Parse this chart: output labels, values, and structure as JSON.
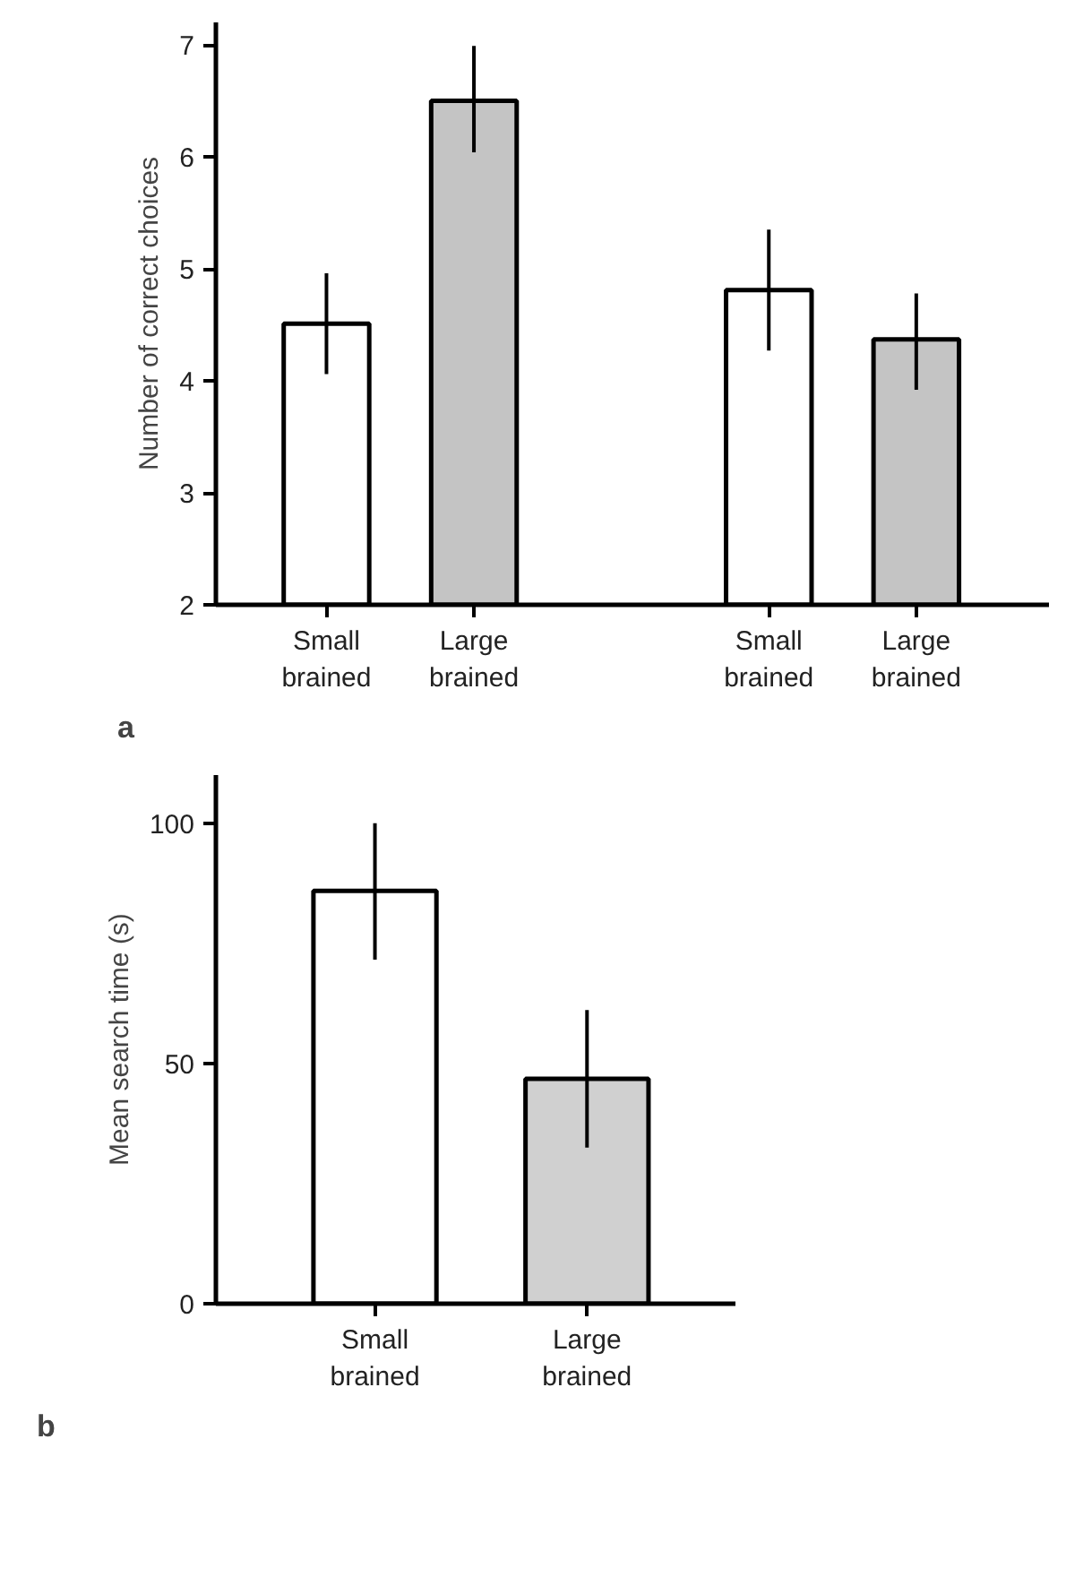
{
  "chart_data": [
    {
      "type": "bar",
      "ylabel": "Number of correct choices",
      "categories": [
        "Small brained",
        "Large brained",
        null,
        "Small brained",
        "Large brained"
      ],
      "values": [
        4.51,
        6.5,
        null,
        4.81,
        4.37
      ],
      "colors": [
        "#ffffff",
        "#c4c4c4",
        null,
        "#ffffff",
        "#c4c4c4"
      ],
      "errors": [
        [
          4.06,
          4.96
        ],
        [
          6.04,
          6.99
        ],
        null,
        [
          4.27,
          5.35
        ],
        [
          3.92,
          4.78
        ]
      ],
      "ylim": [
        2,
        7.2
      ],
      "yticks": [
        2,
        3,
        4,
        5,
        6,
        7
      ],
      "grid": false,
      "annotations": [
        "a"
      ]
    },
    {
      "type": "bar",
      "ylabel": "Mean search time (s)",
      "categories": [
        "Small brained",
        "Large brained"
      ],
      "values": [
        85.9,
        46.8
      ],
      "colors": [
        "#ffffff",
        "#d0d0d0"
      ],
      "errors": [
        [
          71.6,
          100
        ],
        [
          32.5,
          61.1
        ]
      ],
      "ylim": [
        0,
        110
      ],
      "yticks": [
        0,
        50,
        100
      ],
      "grid": false,
      "annotations": [
        "b"
      ]
    }
  ]
}
